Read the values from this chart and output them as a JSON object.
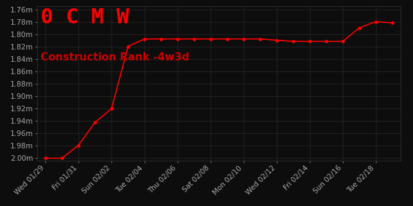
{
  "title": "0 C M W",
  "subtitle": "Construction Rank -4w3d",
  "title_color": "#ff0000",
  "subtitle_color": "#cc0000",
  "bg_color": "#0d0d0d",
  "plot_bg_color": "#0d0d0d",
  "grid_color": "#2a2a2a",
  "line_color": "#ff0000",
  "marker_color": "#ff0000",
  "text_color": "#aaaaaa",
  "x_labels": [
    "Wed 01/29",
    "Fri 01/31",
    "Sun 02/02",
    "Tue 02/04",
    "Thu 02/06",
    "Sat 02/08",
    "Mon 02/10",
    "Wed 02/12",
    "Fri 02/14",
    "Sun 02/16",
    "Tue 02/18"
  ],
  "x_positions": [
    0,
    2,
    4,
    6,
    8,
    10,
    12,
    14,
    16,
    18,
    20
  ],
  "y_values": [
    2.001,
    2.001,
    1.98,
    1.943,
    1.921,
    1.82,
    1.808,
    1.808,
    1.808,
    1.808,
    1.808,
    1.808,
    1.808,
    1.808,
    1.81,
    1.812,
    1.812,
    1.812,
    1.812,
    1.79,
    1.78,
    1.782
  ],
  "x_data": [
    0,
    1,
    2,
    3,
    4,
    5,
    6,
    7,
    8,
    9,
    10,
    11,
    12,
    13,
    14,
    15,
    16,
    17,
    18,
    19,
    20,
    21
  ],
  "ylim_min": 2.005,
  "ylim_max": 1.755,
  "yticks": [
    1.76,
    1.78,
    1.8,
    1.82,
    1.84,
    1.86,
    1.88,
    1.9,
    1.92,
    1.94,
    1.96,
    1.98,
    2.0
  ],
  "title_fontsize": 22,
  "subtitle_fontsize": 11,
  "tick_fontsize": 7.5,
  "xlim_min": -0.5,
  "xlim_max": 21.5
}
